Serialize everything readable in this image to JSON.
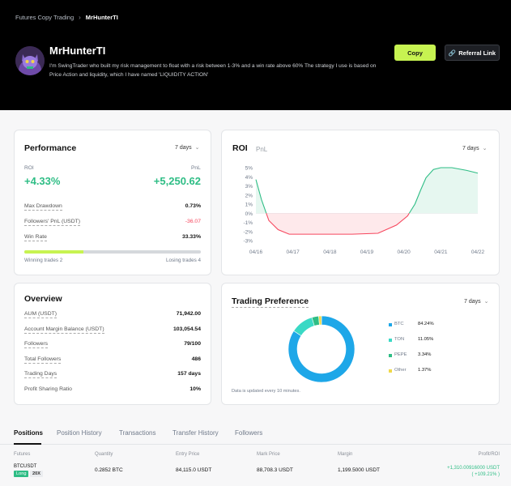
{
  "breadcrumb": {
    "parent": "Futures Copy Trading",
    "current": "MrHunterTI"
  },
  "trader": {
    "name": "MrHunterTI",
    "bio": "I'm SwingTrader who built my risk management to float with a risk between 1-3% and a win rate above 60% The strategy I use is based on Price Action and liquidity, which I have named 'LIQUIDITY ACTION'"
  },
  "actions": {
    "copy_label": "Copy",
    "referral_label": "Referral Link"
  },
  "performance": {
    "title": "Performance",
    "period": "7 days",
    "roi_label": "ROI",
    "pnl_label": "PnL",
    "roi_value": "+4.33%",
    "pnl_value": "+5,250.62",
    "rows": [
      {
        "label": "Max Drawdown",
        "value": "0.73%"
      },
      {
        "label": "Followers' PnL (USDT)",
        "value": "-36.07"
      },
      {
        "label": "Win Rate",
        "value": "33.33%"
      }
    ],
    "win_fraction": 0.333,
    "winning_label": "Winning trades 2",
    "losing_label": "Losing trades 4"
  },
  "roi_chart": {
    "tab_roi": "ROI",
    "tab_pnl": "PnL",
    "period": "7 days",
    "colors": {
      "positive": "#2ebd85",
      "negative": "#f6465d"
    }
  },
  "chart_data": {
    "type": "area",
    "title": "ROI",
    "y_ticks": [
      "5%",
      "4%",
      "3%",
      "2%",
      "1%",
      "0%",
      "-1%",
      "-2%",
      "-3%"
    ],
    "x_ticks": [
      "04/16",
      "04/17",
      "04/18",
      "04/19",
      "04/20",
      "04/21",
      "04/22"
    ],
    "ylim": [
      -3,
      5
    ],
    "x": [
      0,
      0.15,
      0.35,
      0.6,
      0.9,
      1.3,
      1.9,
      2.6,
      3.3,
      3.8,
      4.1,
      4.3,
      4.45,
      4.6,
      4.8,
      5.0,
      5.3,
      5.7,
      6.0
    ],
    "y": [
      3.7,
      1.5,
      -0.8,
      -1.8,
      -2.3,
      -2.3,
      -2.3,
      -2.3,
      -2.2,
      -1.3,
      -0.3,
      1.0,
      2.5,
      3.9,
      4.8,
      5.0,
      5.0,
      4.7,
      4.4
    ]
  },
  "overview": {
    "title": "Overview",
    "rows": [
      {
        "label": "AUM (USDT)",
        "value": "71,942.00"
      },
      {
        "label": "Account Margin Balance (USDT)",
        "value": "103,054.54"
      },
      {
        "label": "Followers",
        "value": "79/100"
      },
      {
        "label": "Total Followers",
        "value": "486"
      },
      {
        "label": "Trading Days",
        "value": "157 days"
      },
      {
        "label": "Profit Sharing Ratio",
        "value": "10%"
      }
    ]
  },
  "trading_preference": {
    "title": "Trading Preference",
    "period": "7 days",
    "note": "Data is updated every 10 minutes.",
    "items": [
      {
        "name": "BTC",
        "value": 84.24,
        "label": "84.24%",
        "color": "#1ea7e8"
      },
      {
        "name": "TON",
        "value": 11.05,
        "label": "11.05%",
        "color": "#3ad9c5"
      },
      {
        "name": "PEPE",
        "value": 3.34,
        "label": "3.34%",
        "color": "#2ebd85"
      },
      {
        "name": "Other",
        "value": 1.37,
        "label": "1.37%",
        "color": "#f0d94a"
      }
    ]
  },
  "tabs": [
    "Positions",
    "Position History",
    "Transactions",
    "Transfer History",
    "Followers"
  ],
  "positions": {
    "headers": [
      "Futures",
      "Quantity",
      "Entry Price",
      "Mark Price",
      "Margin",
      "Profit/ROI"
    ],
    "rows": [
      {
        "symbol": "BTCUSDT",
        "side": "Long",
        "leverage": "20X",
        "quantity": "0.2852 BTC",
        "entry": "84,115.0 USDT",
        "mark": "88,708.3 USDT",
        "margin": "1,199.5000 USDT",
        "profit": "+1,310.00916000 USDT",
        "roi": "( +109.21% )"
      }
    ]
  }
}
